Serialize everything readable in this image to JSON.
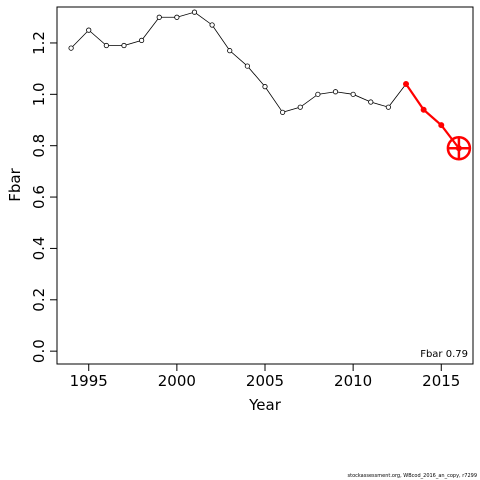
{
  "chart_data": {
    "type": "line",
    "xlabel": "Year",
    "ylabel": "Fbar",
    "xlim": [
      1993.2,
      2016.8
    ],
    "ylim": [
      -0.05,
      1.34
    ],
    "xticks": [
      1995,
      2000,
      2005,
      2010,
      2015
    ],
    "yticks": [
      0.0,
      0.2,
      0.4,
      0.6,
      0.8,
      1.0,
      1.2
    ],
    "ytick_labels": [
      "0.0",
      "0.2",
      "0.4",
      "0.6",
      "0.8",
      "1.0",
      "1.2"
    ],
    "grid": false,
    "series": [
      {
        "color": "#000000",
        "x": [
          1994,
          1995,
          1996,
          1997,
          1998,
          1999,
          2000,
          2001,
          2002,
          2003,
          2004,
          2005,
          2006,
          2007,
          2008,
          2009,
          2010,
          2011,
          2012,
          2013
        ],
        "y": [
          1.18,
          1.25,
          1.19,
          1.19,
          1.21,
          1.3,
          1.3,
          1.32,
          1.27,
          1.17,
          1.11,
          1.03,
          0.93,
          0.95,
          1.0,
          1.01,
          1.0,
          0.97,
          0.95,
          1.04
        ]
      },
      {
        "color": "#ff0000",
        "x": [
          2013,
          2014,
          2015,
          2016
        ],
        "y": [
          1.04,
          0.94,
          0.88,
          0.79
        ]
      }
    ],
    "highlight": {
      "x": 2016,
      "y": 0.79,
      "color": "#ff0000",
      "marker": "circle-cross"
    },
    "annotation": "Fbar 0.79"
  },
  "footer": "stockassessment.org,  WBcod_2016_an_copy,  r7299"
}
